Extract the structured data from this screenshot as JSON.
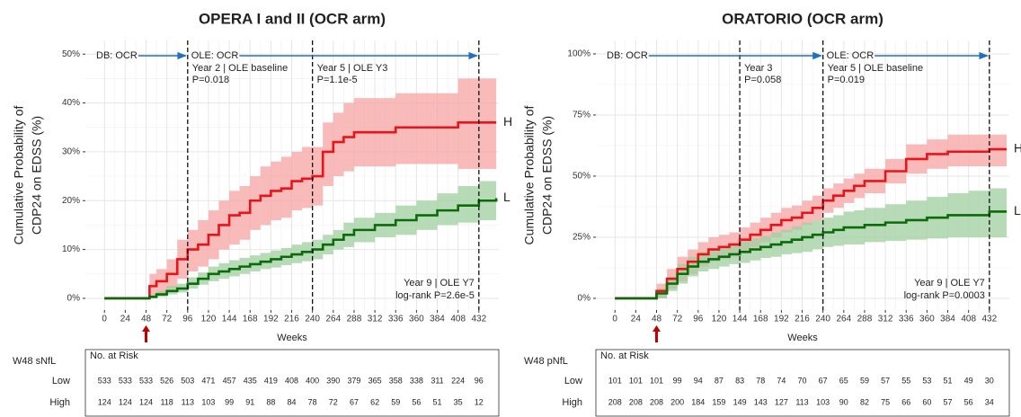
{
  "chart_data": [
    {
      "type": "line",
      "title": "OPERA I and II (OCR arm)",
      "xlabel": "Weeks",
      "ylabel": [
        "Cumulative Probability of",
        "CDP24 on EDSS (%)"
      ],
      "xlim": [
        -22,
        455
      ],
      "ylim": [
        -2.4,
        52.8
      ],
      "xticks": [
        0,
        24,
        48,
        72,
        96,
        120,
        144,
        168,
        192,
        216,
        240,
        264,
        288,
        312,
        336,
        360,
        384,
        408,
        432
      ],
      "yticks": [
        {
          "value": 0,
          "label": "0%"
        },
        {
          "value": 10,
          "label": "10%"
        },
        {
          "value": 20,
          "label": "20%"
        },
        {
          "value": 30,
          "label": "30%"
        },
        {
          "value": 40,
          "label": "40%"
        },
        {
          "value": 50,
          "label": "50%"
        }
      ],
      "grid": true,
      "highlight_week": 48,
      "phases": [
        {
          "label": "DB:",
          "drug": "OCR",
          "to": 96
        },
        {
          "label": "OLE:",
          "drug": "OCR",
          "to": 432
        }
      ],
      "milestones": [
        {
          "x": 96,
          "label": "Year 2 | OLE baseline",
          "p": "P=0.018",
          "placement": "top"
        },
        {
          "x": 240,
          "label": "Year 5 | OLE Y3",
          "p": "P=1.1e-5",
          "placement": "top"
        },
        {
          "x": 432,
          "label": "Year 9 | OLE Y7",
          "p": "log-rank P=2.6e-5",
          "placement": "bottom"
        }
      ],
      "x": [
        0,
        48,
        52,
        60,
        72,
        84,
        96,
        108,
        120,
        132,
        144,
        156,
        168,
        180,
        192,
        204,
        216,
        228,
        240,
        252,
        264,
        276,
        288,
        312,
        336,
        360,
        384,
        408,
        432,
        452
      ],
      "series": [
        {
          "name": "H",
          "color": "#e8141a",
          "band_color": "#f7a3a3",
          "values": [
            0,
            0,
            2.5,
            3.5,
            5,
            8,
            10,
            11,
            13,
            15,
            17,
            17.5,
            20,
            21,
            22,
            22.5,
            24,
            24.5,
            25,
            30,
            32,
            33,
            34,
            34,
            35,
            35,
            35,
            36,
            36,
            36
          ],
          "lower": [
            0,
            0,
            0.5,
            1,
            2,
            4,
            5.5,
            6.5,
            8,
            10,
            11,
            12,
            14,
            15,
            16,
            16.5,
            18,
            18.5,
            19,
            23,
            25,
            26,
            27,
            27,
            27.5,
            27.5,
            27.5,
            26.5,
            26.5,
            26.5
          ],
          "upper": [
            0,
            0,
            5,
            6,
            8,
            12,
            14,
            16,
            18,
            20,
            22,
            23,
            25,
            27,
            28,
            29,
            30,
            31,
            31,
            36,
            38,
            40,
            41,
            41,
            42,
            42,
            42,
            45,
            45,
            45
          ]
        },
        {
          "name": "L",
          "color": "#0b6b0b",
          "band_color": "#9fcf9f",
          "values": [
            0,
            0,
            0.3,
            0.8,
            1.5,
            2,
            3,
            4,
            5,
            5.5,
            6,
            6.5,
            7,
            7.5,
            8,
            8.5,
            9,
            9.5,
            10,
            11,
            12,
            13,
            14,
            15,
            16,
            17,
            18,
            19,
            20,
            20.5
          ],
          "lower": [
            0,
            0,
            0,
            0.3,
            0.8,
            1.2,
            2,
            2.8,
            3.5,
            4,
            4.5,
            5,
            5.5,
            6,
            6.3,
            6.8,
            7.2,
            7.6,
            8,
            9,
            10,
            10.5,
            11.5,
            12.5,
            13,
            14,
            15,
            15.5,
            16,
            16.5
          ],
          "upper": [
            0,
            0,
            0.8,
            1.5,
            2.5,
            3,
            4.3,
            5.3,
            6.5,
            7.2,
            7.8,
            8.3,
            8.8,
            9.3,
            9.8,
            10.3,
            11,
            11.5,
            12,
            13,
            14,
            15.5,
            16.5,
            17.5,
            19,
            20,
            21.5,
            23,
            24,
            24.5
          ]
        }
      ],
      "risk_table": {
        "group_label": "W48 sNfL",
        "title": "No. at Risk",
        "rows": [
          {
            "name": "Low",
            "color": "#19a83a",
            "values": [
              533,
              533,
              533,
              526,
              503,
              471,
              457,
              435,
              419,
              408,
              400,
              390,
              379,
              365,
              358,
              338,
              311,
              224,
              96
            ]
          },
          {
            "name": "High",
            "color": "#e8141a",
            "values": [
              124,
              124,
              124,
              118,
              113,
              103,
              99,
              91,
              88,
              84,
              78,
              72,
              67,
              62,
              59,
              56,
              51,
              35,
              12
            ]
          }
        ]
      }
    },
    {
      "type": "line",
      "title": "ORATORIO (OCR arm)",
      "xlabel": "Weeks",
      "ylabel": [
        "Cumulative Probability of",
        "CDP24 on EDSS (%)"
      ],
      "xlim": [
        -22,
        455
      ],
      "ylim": [
        -4.8,
        105.5
      ],
      "xticks": [
        0,
        24,
        48,
        72,
        96,
        120,
        144,
        168,
        192,
        216,
        240,
        264,
        288,
        312,
        336,
        360,
        384,
        408,
        432
      ],
      "yticks": [
        {
          "value": 0,
          "label": "0%"
        },
        {
          "value": 25,
          "label": "25%"
        },
        {
          "value": 50,
          "label": "50%"
        },
        {
          "value": 75,
          "label": "75%"
        },
        {
          "value": 100,
          "label": "100%"
        }
      ],
      "grid": true,
      "highlight_week": 48,
      "phases": [
        {
          "label": "DB:",
          "drug": "OCR",
          "to": 240
        },
        {
          "label": "OLE:",
          "drug": "OCR",
          "to": 432
        }
      ],
      "milestones": [
        {
          "x": 144,
          "label": "Year 3",
          "p": "P=0.058",
          "placement": "top"
        },
        {
          "x": 240,
          "label": "Year 5 | OLE baseline",
          "p": "P=0.019",
          "placement": "top"
        },
        {
          "x": 432,
          "label": "Year 9 | OLE Y7",
          "p": "log-rank P=0.0003",
          "placement": "bottom"
        }
      ],
      "x": [
        0,
        40,
        48,
        60,
        72,
        84,
        96,
        108,
        120,
        132,
        144,
        156,
        168,
        180,
        192,
        204,
        216,
        228,
        240,
        252,
        264,
        276,
        288,
        312,
        336,
        360,
        384,
        408,
        432,
        452
      ],
      "series": [
        {
          "name": "H",
          "color": "#e8141a",
          "band_color": "#f7a3a3",
          "values": [
            0,
            0,
            3,
            8,
            12,
            15,
            18,
            20,
            21,
            22,
            24,
            26,
            28,
            30,
            32,
            33,
            35,
            37,
            40,
            42,
            44,
            46,
            48,
            52,
            57,
            59,
            60,
            60,
            61,
            61
          ],
          "lower": [
            0,
            0,
            0,
            4,
            7,
            10,
            13,
            15,
            16,
            17,
            19,
            21,
            23,
            25,
            27,
            28,
            30,
            32,
            35,
            37,
            39,
            41,
            43,
            47,
            51,
            53,
            54,
            54,
            54,
            54
          ],
          "upper": [
            0,
            0,
            6,
            12,
            17,
            20,
            23,
            25,
            26,
            27,
            29,
            31,
            33,
            35,
            37,
            38,
            40,
            42,
            45,
            47,
            49,
            51,
            53,
            57,
            63,
            65,
            67,
            67,
            67,
            67
          ]
        },
        {
          "name": "L",
          "color": "#0b6b0b",
          "band_color": "#9fcf9f",
          "values": [
            0,
            0,
            2,
            6,
            10,
            13,
            15,
            16,
            17,
            18,
            19,
            20,
            21,
            22,
            23,
            24,
            25,
            26,
            27,
            28,
            29,
            29,
            30,
            31,
            32,
            33,
            34,
            34,
            35.5,
            35.5
          ],
          "lower": [
            0,
            0,
            0,
            3,
            6,
            9,
            11,
            12,
            13,
            14,
            14.5,
            15.5,
            16.5,
            17,
            18,
            18.5,
            19,
            20,
            21,
            21.5,
            22,
            22,
            23,
            23.5,
            24,
            24.5,
            25,
            25,
            25,
            25
          ],
          "upper": [
            0,
            0,
            4,
            9,
            14,
            17,
            19,
            20,
            21,
            22,
            23.5,
            24.5,
            25.5,
            27,
            28,
            29.5,
            31,
            32,
            33,
            34,
            35.5,
            36,
            37,
            38.5,
            40,
            41.5,
            43,
            44,
            45,
            45
          ]
        }
      ],
      "risk_table": {
        "group_label": "W48 pNfL",
        "title": "No. at Risk",
        "rows": [
          {
            "name": "Low",
            "color": "#19a83a",
            "values": [
              101,
              101,
              101,
              99,
              94,
              87,
              83,
              78,
              74,
              70,
              67,
              65,
              59,
              57,
              55,
              53,
              51,
              49,
              30
            ]
          },
          {
            "name": "High",
            "color": "#e8141a",
            "values": [
              208,
              208,
              208,
              200,
              184,
              159,
              149,
              143,
              127,
              113,
              103,
              90,
              82,
              75,
              66,
              60,
              57,
              56,
              34
            ]
          }
        ]
      }
    }
  ]
}
